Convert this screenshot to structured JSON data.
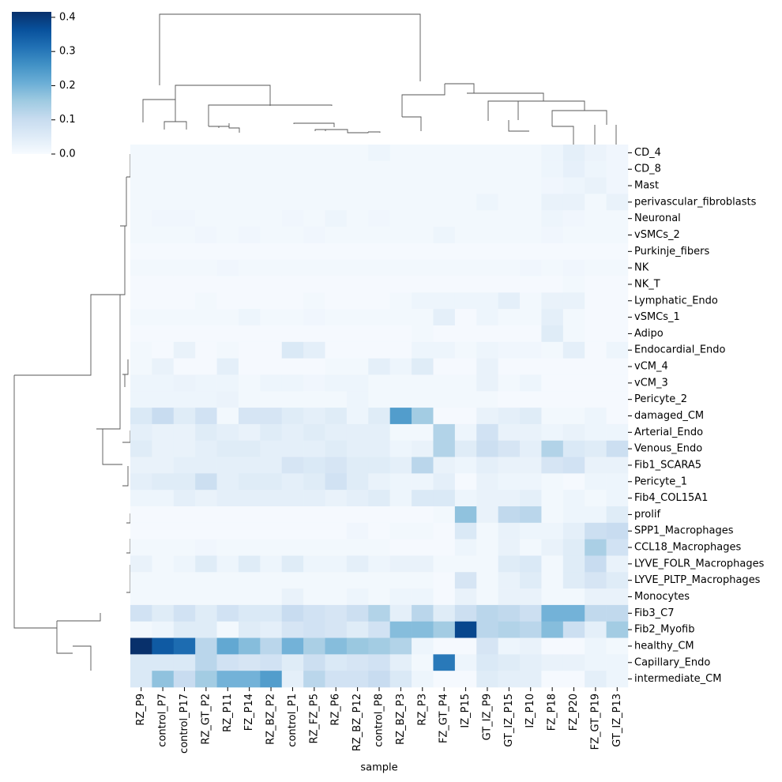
{
  "chart_data": {
    "type": "heatmap",
    "colormap": "Blues",
    "x_label": "sample",
    "columns": [
      "RZ_P9",
      "control_P7",
      "control_P17",
      "RZ_GT_P2",
      "RZ_P11",
      "FZ_P14",
      "RZ_BZ_P2",
      "control_P1",
      "RZ_FZ_P5",
      "RZ_P6",
      "RZ_BZ_P12",
      "control_P8",
      "RZ_BZ_P3",
      "RZ_P3",
      "FZ_GT_P4",
      "IZ_P15",
      "GT_IZ_P9",
      "GT_IZ_P15",
      "IZ_P10",
      "FZ_P18",
      "FZ_P20",
      "FZ_GT_P19",
      "GT_IZ_P13"
    ],
    "rows": [
      "CD_4",
      "CD_8",
      "Mast",
      "perivascular_fibroblasts",
      "Neuronal",
      "vSMCs_2",
      "Purkinje_fibers",
      "NK",
      "NK_T",
      "Lymphatic_Endo",
      "vSMCs_1",
      "Adipo",
      "Endocardial_Endo",
      "vCM_4",
      "vCM_3",
      "Pericyte_2",
      "damaged_CM",
      "Arterial_Endo",
      "Venous_Endo",
      "Fib1_SCARA5",
      "Pericyte_1",
      "Fib4_COL15A1",
      "prolif",
      "SPP1_Macrophages",
      "CCL18_Macrophages",
      "LYVE_FOLR_Macrophages",
      "LYVE_PLTP_Macrophages",
      "Monocytes",
      "Fib3_C7",
      "Fib2_Myofib",
      "healthy_CM",
      "Capillary_Endo",
      "intermediate_CM"
    ],
    "values": [
      [
        0.01,
        0.01,
        0.01,
        0.01,
        0.01,
        0.01,
        0.01,
        0.01,
        0.01,
        0.01,
        0.01,
        0.02,
        0.01,
        0.01,
        0.01,
        0.01,
        0.01,
        0.01,
        0.01,
        0.02,
        0.04,
        0.025,
        0.015
      ],
      [
        0.01,
        0.01,
        0.01,
        0.01,
        0.01,
        0.01,
        0.01,
        0.01,
        0.01,
        0.01,
        0.01,
        0.01,
        0.01,
        0.01,
        0.01,
        0.01,
        0.01,
        0.01,
        0.01,
        0.02,
        0.035,
        0.02,
        0.015
      ],
      [
        0.01,
        0.01,
        0.01,
        0.01,
        0.01,
        0.01,
        0.01,
        0.01,
        0.01,
        0.01,
        0.01,
        0.01,
        0.01,
        0.01,
        0.01,
        0.01,
        0.01,
        0.01,
        0.01,
        0.015,
        0.02,
        0.03,
        0.015
      ],
      [
        0.01,
        0.01,
        0.01,
        0.01,
        0.01,
        0.01,
        0.01,
        0.01,
        0.01,
        0.01,
        0.01,
        0.01,
        0.01,
        0.01,
        0.01,
        0.01,
        0.02,
        0.01,
        0.01,
        0.03,
        0.03,
        0.01,
        0.03
      ],
      [
        0.01,
        0.015,
        0.015,
        0.01,
        0.01,
        0.01,
        0.01,
        0.015,
        0.01,
        0.02,
        0.01,
        0.015,
        0.01,
        0.01,
        0.01,
        0.01,
        0.01,
        0.01,
        0.01,
        0.02,
        0.015,
        0.01,
        0.01
      ],
      [
        0.01,
        0.01,
        0.01,
        0.015,
        0.01,
        0.015,
        0.01,
        0.01,
        0.015,
        0.01,
        0.01,
        0.01,
        0.01,
        0.01,
        0.02,
        0.01,
        0.01,
        0.01,
        0.01,
        0.015,
        0.01,
        0.01,
        0.01
      ],
      [
        0.005,
        0.005,
        0.005,
        0.005,
        0.005,
        0.005,
        0.005,
        0.005,
        0.005,
        0.005,
        0.005,
        0.005,
        0.005,
        0.005,
        0.005,
        0.005,
        0.005,
        0.005,
        0.005,
        0.005,
        0.005,
        0.005,
        0.005
      ],
      [
        0.01,
        0.01,
        0.01,
        0.01,
        0.015,
        0.01,
        0.01,
        0.01,
        0.01,
        0.01,
        0.01,
        0.01,
        0.01,
        0.01,
        0.01,
        0.01,
        0.01,
        0.01,
        0.015,
        0.01,
        0.015,
        0.01,
        0.01
      ],
      [
        0.005,
        0.005,
        0.005,
        0.005,
        0.005,
        0.005,
        0.005,
        0.005,
        0.005,
        0.005,
        0.005,
        0.005,
        0.005,
        0.005,
        0.005,
        0.005,
        0.005,
        0.005,
        0.005,
        0.005,
        0.01,
        0.005,
        0.005
      ],
      [
        0.005,
        0.005,
        0.005,
        0.01,
        0.005,
        0.005,
        0.005,
        0.005,
        0.01,
        0.005,
        0.005,
        0.005,
        0.01,
        0.02,
        0.02,
        0.02,
        0.02,
        0.04,
        0.01,
        0.03,
        0.03,
        0.005,
        0.005
      ],
      [
        0.01,
        0.01,
        0.01,
        0.01,
        0.01,
        0.02,
        0.01,
        0.01,
        0.015,
        0.01,
        0.01,
        0.01,
        0.01,
        0.01,
        0.04,
        0.005,
        0.02,
        0.01,
        0.01,
        0.04,
        0.01,
        0.005,
        0.005
      ],
      [
        0.005,
        0.005,
        0.005,
        0.005,
        0.005,
        0.005,
        0.005,
        0.005,
        0.005,
        0.005,
        0.005,
        0.005,
        0.005,
        0.01,
        0.005,
        0.005,
        0.005,
        0.005,
        0.005,
        0.05,
        0.01,
        0.005,
        0.005
      ],
      [
        0.01,
        0.005,
        0.03,
        0.005,
        0.01,
        0.005,
        0.005,
        0.06,
        0.04,
        0.005,
        0.005,
        0.005,
        0.005,
        0.02,
        0.02,
        0.01,
        0.02,
        0.015,
        0.015,
        0.01,
        0.04,
        0.005,
        0.02
      ],
      [
        0.01,
        0.03,
        0.005,
        0.005,
        0.04,
        0.005,
        0.005,
        0.005,
        0.005,
        0.01,
        0.01,
        0.04,
        0.02,
        0.05,
        0.005,
        0.005,
        0.03,
        0.005,
        0.005,
        0.005,
        0.005,
        0.005,
        0.005
      ],
      [
        0.02,
        0.02,
        0.025,
        0.02,
        0.02,
        0.01,
        0.02,
        0.02,
        0.015,
        0.02,
        0.02,
        0.01,
        0.01,
        0.01,
        0.01,
        0.01,
        0.03,
        0.01,
        0.02,
        0.005,
        0.005,
        0.005,
        0.005
      ],
      [
        0.02,
        0.02,
        0.02,
        0.02,
        0.025,
        0.01,
        0.01,
        0.01,
        0.01,
        0.01,
        0.02,
        0.01,
        0.01,
        0.01,
        0.01,
        0.01,
        0.01,
        0.005,
        0.005,
        0.005,
        0.005,
        0.005,
        0.005
      ],
      [
        0.06,
        0.1,
        0.05,
        0.08,
        0.01,
        0.07,
        0.07,
        0.05,
        0.04,
        0.05,
        0.02,
        0.05,
        0.24,
        0.15,
        0.005,
        0.005,
        0.03,
        0.04,
        0.05,
        0.01,
        0.01,
        0.02,
        0.005
      ],
      [
        0.04,
        0.03,
        0.03,
        0.05,
        0.04,
        0.03,
        0.05,
        0.04,
        0.05,
        0.04,
        0.04,
        0.04,
        0.01,
        0.01,
        0.13,
        0.02,
        0.08,
        0.03,
        0.03,
        0.02,
        0.03,
        0.02,
        0.02
      ],
      [
        0.05,
        0.03,
        0.03,
        0.04,
        0.05,
        0.05,
        0.04,
        0.04,
        0.04,
        0.05,
        0.04,
        0.04,
        0.02,
        0.03,
        0.13,
        0.05,
        0.09,
        0.07,
        0.04,
        0.13,
        0.06,
        0.05,
        0.09
      ],
      [
        0.03,
        0.03,
        0.04,
        0.04,
        0.04,
        0.04,
        0.04,
        0.07,
        0.06,
        0.07,
        0.05,
        0.05,
        0.04,
        0.12,
        0.03,
        0.02,
        0.04,
        0.03,
        0.03,
        0.07,
        0.08,
        0.03,
        0.03
      ],
      [
        0.04,
        0.05,
        0.05,
        0.09,
        0.04,
        0.05,
        0.05,
        0.04,
        0.05,
        0.08,
        0.05,
        0.03,
        0.02,
        0.02,
        0.04,
        0.005,
        0.03,
        0.02,
        0.02,
        0.01,
        0.005,
        0.02,
        0.02
      ],
      [
        0.02,
        0.02,
        0.04,
        0.03,
        0.04,
        0.04,
        0.04,
        0.04,
        0.04,
        0.03,
        0.04,
        0.05,
        0.02,
        0.06,
        0.06,
        0.02,
        0.03,
        0.03,
        0.04,
        0.01,
        0.02,
        0.01,
        0.02
      ],
      [
        0.005,
        0.005,
        0.005,
        0.005,
        0.005,
        0.005,
        0.005,
        0.005,
        0.005,
        0.005,
        0.005,
        0.005,
        0.005,
        0.005,
        0.01,
        0.17,
        0.03,
        0.11,
        0.12,
        0.01,
        0.02,
        0.02,
        0.05
      ],
      [
        0.005,
        0.005,
        0.005,
        0.005,
        0.005,
        0.005,
        0.005,
        0.005,
        0.005,
        0.005,
        0.015,
        0.005,
        0.01,
        0.01,
        0.005,
        0.06,
        0.01,
        0.03,
        0.02,
        0.02,
        0.04,
        0.09,
        0.1
      ],
      [
        0.01,
        0.01,
        0.01,
        0.015,
        0.01,
        0.01,
        0.01,
        0.01,
        0.01,
        0.01,
        0.01,
        0.01,
        0.005,
        0.005,
        0.005,
        0.02,
        0.01,
        0.03,
        0.01,
        0.03,
        0.05,
        0.14,
        0.08
      ],
      [
        0.03,
        0.01,
        0.02,
        0.05,
        0.02,
        0.05,
        0.02,
        0.05,
        0.02,
        0.02,
        0.04,
        0.02,
        0.03,
        0.03,
        0.01,
        0.01,
        0.01,
        0.05,
        0.06,
        0.01,
        0.05,
        0.1,
        0.03
      ],
      [
        0.01,
        0.01,
        0.01,
        0.01,
        0.01,
        0.01,
        0.01,
        0.01,
        0.01,
        0.01,
        0.01,
        0.01,
        0.01,
        0.01,
        0.005,
        0.07,
        0.01,
        0.03,
        0.05,
        0.01,
        0.05,
        0.07,
        0.05
      ],
      [
        0.01,
        0.01,
        0.01,
        0.01,
        0.01,
        0.01,
        0.01,
        0.03,
        0.01,
        0.01,
        0.02,
        0.01,
        0.02,
        0.02,
        0.005,
        0.03,
        0.01,
        0.03,
        0.03,
        0.01,
        0.01,
        0.03,
        0.03
      ],
      [
        0.08,
        0.05,
        0.08,
        0.05,
        0.08,
        0.06,
        0.06,
        0.1,
        0.08,
        0.07,
        0.09,
        0.13,
        0.04,
        0.12,
        0.05,
        0.09,
        0.12,
        0.11,
        0.09,
        0.2,
        0.2,
        0.11,
        0.11
      ],
      [
        0.01,
        0.02,
        0.05,
        0.05,
        0.01,
        0.05,
        0.04,
        0.07,
        0.08,
        0.07,
        0.05,
        0.08,
        0.18,
        0.18,
        0.15,
        0.38,
        0.12,
        0.13,
        0.12,
        0.18,
        0.09,
        0.04,
        0.15
      ],
      [
        0.42,
        0.35,
        0.32,
        0.12,
        0.22,
        0.18,
        0.12,
        0.2,
        0.14,
        0.18,
        0.16,
        0.15,
        0.13,
        0.02,
        0.005,
        0.005,
        0.07,
        0.02,
        0.03,
        0.005,
        0.005,
        0.02,
        0.01
      ],
      [
        0.06,
        0.06,
        0.06,
        0.12,
        0.08,
        0.07,
        0.08,
        0.05,
        0.09,
        0.06,
        0.07,
        0.08,
        0.04,
        0.01,
        0.3,
        0.02,
        0.06,
        0.05,
        0.04,
        0.03,
        0.03,
        0.02,
        0.02
      ],
      [
        0.06,
        0.17,
        0.1,
        0.15,
        0.2,
        0.2,
        0.24,
        0.04,
        0.12,
        0.08,
        0.08,
        0.1,
        0.06,
        0.02,
        0.005,
        0.005,
        0.05,
        0.04,
        0.04,
        0.005,
        0.005,
        0.04,
        0.02
      ]
    ],
    "clim": [
      0,
      0.416
    ],
    "cticks": [
      {
        "value": 0,
        "label": "0.0"
      },
      0.1,
      0.2,
      0.3,
      0.4
    ]
  }
}
